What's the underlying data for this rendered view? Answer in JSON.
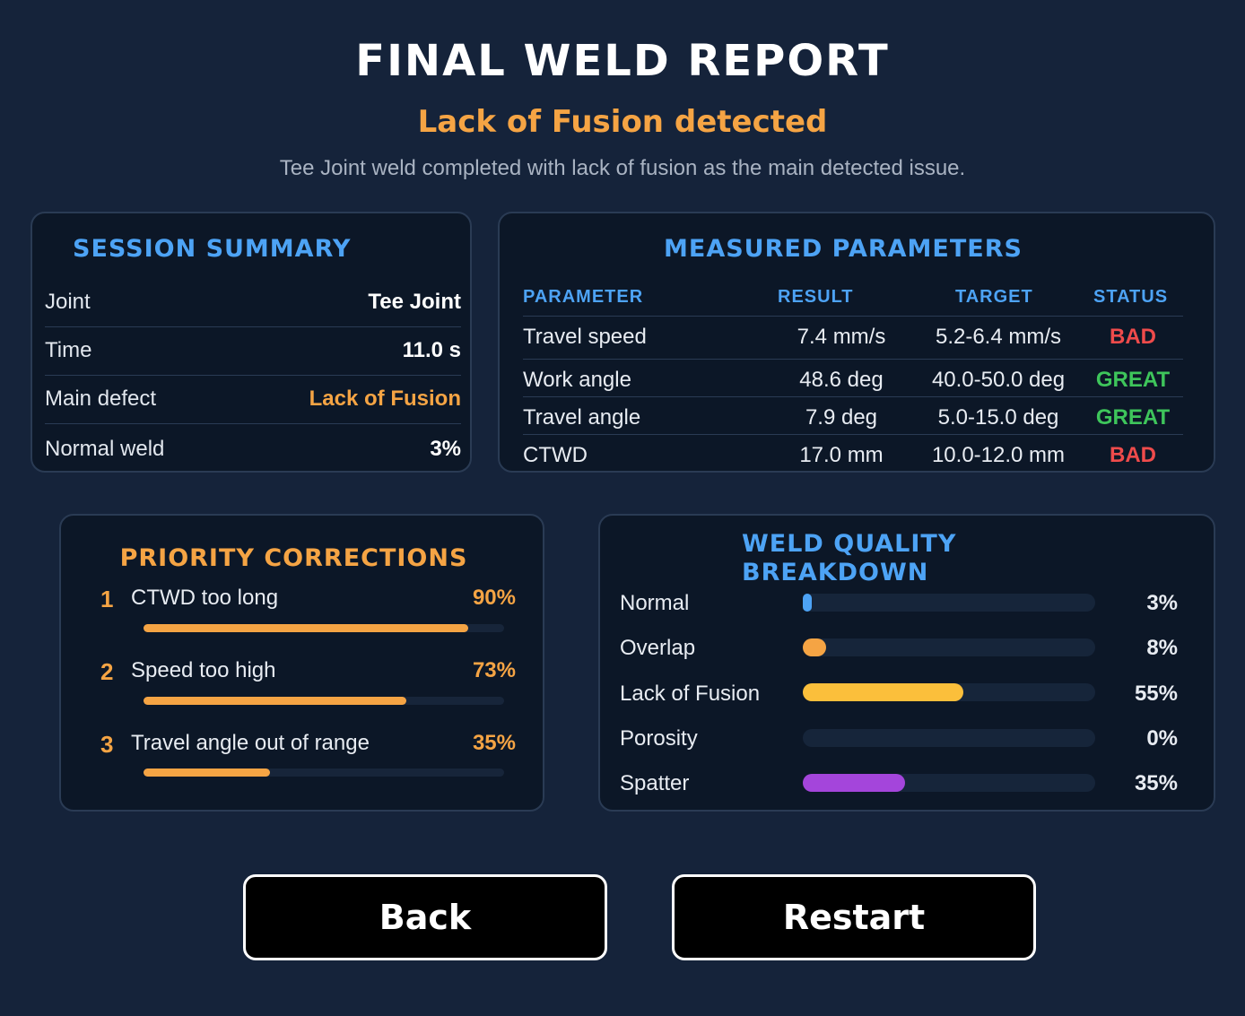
{
  "header": {
    "title": "FINAL WELD REPORT",
    "subtitle": "Lack of Fusion detected",
    "description": "Tee Joint weld completed with lack of fusion as the main detected issue."
  },
  "session_summary": {
    "title": "SESSION SUMMARY",
    "rows": [
      {
        "key": "Joint",
        "value": "Tee Joint"
      },
      {
        "key": "Time",
        "value": "11.0 s"
      },
      {
        "key": "Main defect",
        "value": "Lack of Fusion"
      },
      {
        "key": "Normal weld",
        "value": "3%"
      }
    ]
  },
  "measured_parameters": {
    "title": "MEASURED PARAMETERS",
    "columns": [
      "PARAMETER",
      "RESULT",
      "TARGET",
      "STATUS"
    ],
    "rows": [
      {
        "parameter": "Travel speed",
        "result": "7.4 mm/s",
        "target": "5.2-6.4 mm/s",
        "status": "BAD"
      },
      {
        "parameter": "Work angle",
        "result": "48.6 deg",
        "target": "40.0-50.0 deg",
        "status": "GREAT"
      },
      {
        "parameter": "Travel angle",
        "result": "7.9 deg",
        "target": "5.0-15.0 deg",
        "status": "GREAT"
      },
      {
        "parameter": "CTWD",
        "result": "17.0 mm",
        "target": "10.0-12.0 mm",
        "status": "BAD"
      }
    ],
    "status_colors": {
      "BAD": "#ef4b4b",
      "GREAT": "#3ec55b"
    }
  },
  "priority_corrections": {
    "title": "PRIORITY CORRECTIONS",
    "items": [
      {
        "rank": "1",
        "label": "CTWD too long",
        "percent_text": "90%",
        "value": 90
      },
      {
        "rank": "2",
        "label": "Speed too high",
        "percent_text": "73%",
        "value": 73
      },
      {
        "rank": "3",
        "label": "Travel angle out of range",
        "percent_text": "35%",
        "value": 35
      }
    ],
    "bar_color": "#f5a444"
  },
  "weld_quality": {
    "title_line1": "WELD QUALITY",
    "title_line2": "BREAKDOWN",
    "items": [
      {
        "label": "Normal",
        "percent_text": "3%",
        "value": 3,
        "color": "#4da3f5"
      },
      {
        "label": "Overlap",
        "percent_text": "8%",
        "value": 8,
        "color": "#f5a444"
      },
      {
        "label": "Lack of Fusion",
        "percent_text": "55%",
        "value": 55,
        "color": "#fbbf3b"
      },
      {
        "label": "Porosity",
        "percent_text": "0%",
        "value": 0,
        "color": "#4da3f5"
      },
      {
        "label": "Spatter",
        "percent_text": "35%",
        "value": 35,
        "color": "#a445db"
      }
    ]
  },
  "buttons": {
    "back": "Back",
    "restart": "Restart"
  }
}
